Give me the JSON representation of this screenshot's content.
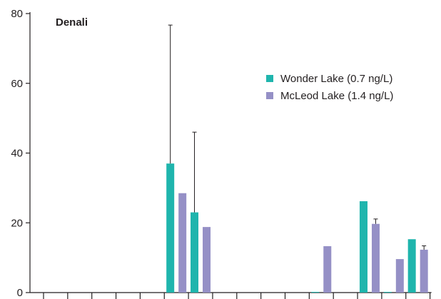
{
  "chart_data": {
    "type": "bar",
    "title": "Denali",
    "xlabel": "",
    "ylabel": "",
    "ylim": [
      0,
      80
    ],
    "yticks": [
      0,
      20,
      40,
      60,
      80
    ],
    "category_count": 16,
    "legend_position": "top-right",
    "grid": false,
    "series": [
      {
        "name": "Wonder Lake (0.7 ng/L)",
        "color": "#1fb5ad",
        "values": [
          0,
          0,
          0,
          0,
          0,
          37.0,
          23.0,
          0,
          0,
          0,
          0,
          0.2,
          0,
          26.2,
          0.2,
          15.3
        ],
        "error": [
          0,
          0,
          0,
          0,
          0,
          39.7,
          23.0,
          0,
          0,
          0,
          0,
          0,
          0,
          0,
          0,
          0
        ]
      },
      {
        "name": "McLeod Lake (1.4 ng/L)",
        "color": "#9590c6",
        "values": [
          0,
          0,
          0,
          0,
          0,
          28.5,
          18.8,
          0,
          0,
          0,
          0,
          13.3,
          0,
          19.7,
          9.6,
          12.3
        ],
        "error": [
          0,
          0,
          0,
          0,
          0,
          0,
          0,
          0,
          0,
          0,
          0,
          0,
          0,
          1.4,
          0,
          1.1
        ]
      }
    ]
  }
}
